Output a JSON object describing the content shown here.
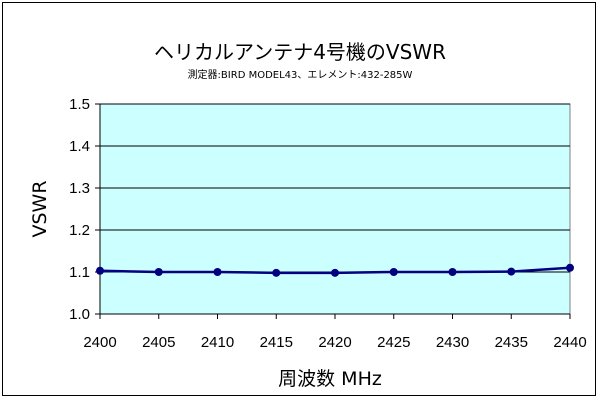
{
  "chart_data": {
    "type": "line",
    "title": "ヘリカルアンテナ4号機のVSWR",
    "subtitle": "測定器:BIRD MODEL43、エレメント:432-285W",
    "xlabel": "周波数 MHz",
    "ylabel": "VSWR",
    "x": [
      2400,
      2405,
      2410,
      2415,
      2420,
      2425,
      2430,
      2435,
      2440
    ],
    "x_ticks": [
      "2400",
      "2405",
      "2410",
      "2415",
      "2420",
      "2425",
      "2430",
      "2435",
      "2440"
    ],
    "y_ticks": [
      "1.0",
      "1.1",
      "1.2",
      "1.3",
      "1.4",
      "1.5"
    ],
    "ylim": [
      1.0,
      1.5
    ],
    "xlim": [
      2400,
      2440
    ],
    "grid": true,
    "series": [
      {
        "values": [
          1.103,
          1.1,
          1.1,
          1.098,
          1.098,
          1.1,
          1.1,
          1.101,
          1.11
        ]
      }
    ],
    "colors": {
      "plot_background": "#ccffff",
      "line": "#000080",
      "marker": "#000080",
      "grid": "#000000"
    }
  }
}
